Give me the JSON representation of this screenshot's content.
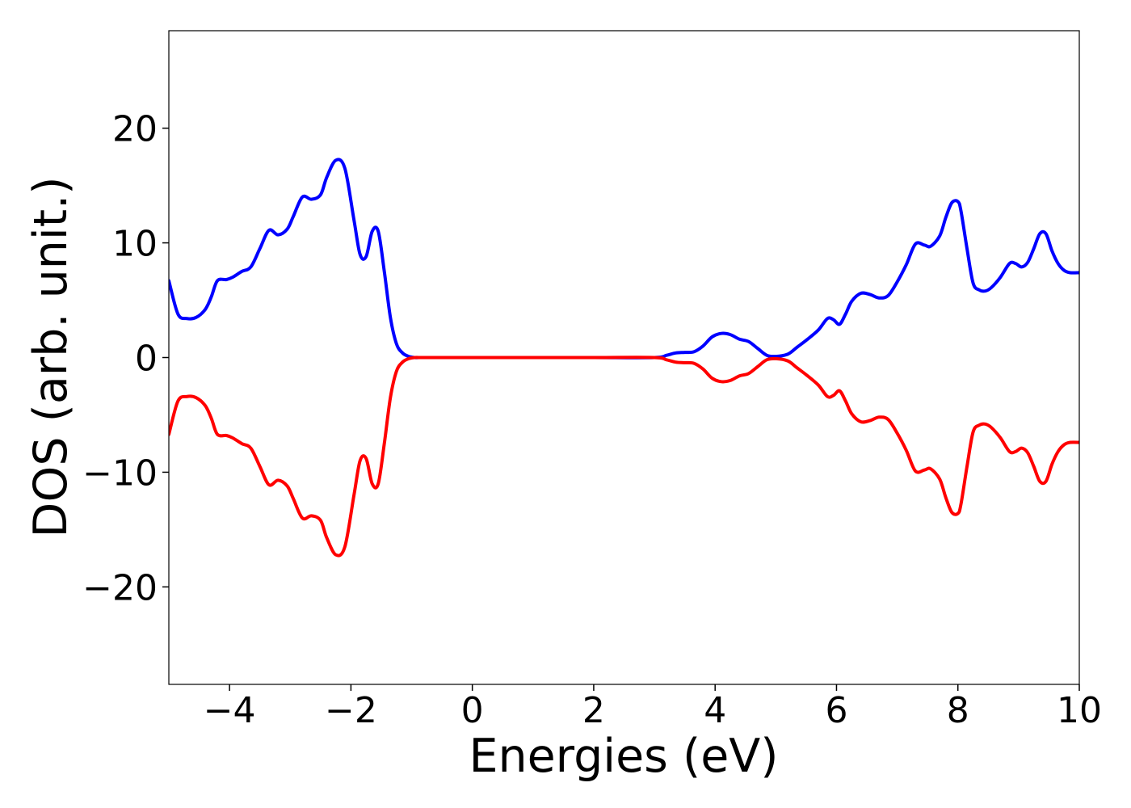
{
  "chart_data": {
    "type": "line",
    "xlabel": "Energies (eV)",
    "ylabel": "DOS (arb. unit.)",
    "xlim": [
      -5,
      10
    ],
    "ylim": [
      -28.5,
      28.5
    ],
    "xticks": [
      -4,
      -2,
      0,
      2,
      4,
      6,
      8,
      10
    ],
    "xtick_labels": [
      "−4",
      "−2",
      "0",
      "2",
      "4",
      "6",
      "8",
      "10"
    ],
    "yticks": [
      20,
      10,
      0,
      -10,
      -20
    ],
    "ytick_labels": [
      "20",
      "10",
      "0",
      "−10",
      "−20"
    ],
    "grid": false,
    "legend": "none",
    "series": [
      {
        "color": "#0000ff",
        "x": [
          -5.0,
          -4.85,
          -4.7,
          -4.55,
          -4.4,
          -4.3,
          -4.2,
          -4.05,
          -3.95,
          -3.8,
          -3.65,
          -3.5,
          -3.35,
          -3.2,
          -3.05,
          -2.95,
          -2.8,
          -2.65,
          -2.5,
          -2.4,
          -2.25,
          -2.1,
          -1.95,
          -1.85,
          -1.75,
          -1.65,
          -1.55,
          -1.45,
          -1.35,
          -1.25,
          -1.15,
          -1.05,
          -0.95,
          -0.85,
          -0.75,
          -0.65,
          -0.55,
          0.0,
          1.0,
          2.0,
          3.0,
          3.2,
          3.35,
          3.5,
          3.65,
          3.8,
          3.95,
          4.1,
          4.25,
          4.4,
          4.55,
          4.7,
          4.85,
          5.0,
          5.2,
          5.35,
          5.5,
          5.7,
          5.85,
          5.95,
          6.05,
          6.15,
          6.25,
          6.4,
          6.55,
          6.7,
          6.85,
          7.0,
          7.15,
          7.3,
          7.45,
          7.55,
          7.7,
          7.8,
          7.9,
          8.0,
          8.05,
          8.15,
          8.25,
          8.35,
          8.45,
          8.55,
          8.7,
          8.85,
          8.95,
          9.05,
          9.15,
          9.25,
          9.35,
          9.45,
          9.55,
          9.65,
          9.75,
          9.85,
          10.0
        ],
        "y": [
          6.7,
          3.8,
          3.4,
          3.5,
          4.2,
          5.3,
          6.7,
          6.8,
          7.0,
          7.5,
          7.9,
          9.5,
          11.1,
          10.7,
          11.2,
          12.3,
          14.0,
          13.8,
          14.2,
          15.7,
          17.2,
          16.5,
          12.0,
          9.0,
          8.8,
          11.0,
          11.0,
          7.5,
          3.5,
          1.2,
          0.4,
          0.1,
          0.0,
          0.0,
          0.0,
          0.0,
          0.0,
          0.0,
          0.0,
          0.0,
          0.0,
          0.2,
          0.4,
          0.45,
          0.5,
          1.0,
          1.8,
          2.1,
          2.0,
          1.6,
          1.4,
          0.8,
          0.2,
          0.1,
          0.3,
          0.9,
          1.5,
          2.4,
          3.4,
          3.3,
          2.9,
          3.8,
          4.9,
          5.6,
          5.5,
          5.2,
          5.4,
          6.6,
          8.1,
          9.9,
          9.8,
          9.7,
          10.6,
          12.2,
          13.5,
          13.6,
          12.8,
          9.5,
          6.5,
          5.9,
          5.8,
          6.1,
          7.0,
          8.2,
          8.2,
          7.9,
          8.3,
          9.5,
          10.8,
          10.8,
          9.3,
          8.2,
          7.6,
          7.4,
          7.4
        ]
      },
      {
        "color": "#ff0000",
        "x": [
          -5.0,
          -4.85,
          -4.7,
          -4.55,
          -4.4,
          -4.3,
          -4.2,
          -4.05,
          -3.95,
          -3.8,
          -3.65,
          -3.5,
          -3.35,
          -3.2,
          -3.05,
          -2.95,
          -2.8,
          -2.65,
          -2.5,
          -2.4,
          -2.25,
          -2.1,
          -1.95,
          -1.85,
          -1.75,
          -1.65,
          -1.55,
          -1.45,
          -1.35,
          -1.25,
          -1.15,
          -1.05,
          -0.95,
          -0.85,
          -0.75,
          -0.65,
          -0.55,
          0.0,
          1.0,
          2.0,
          3.0,
          3.2,
          3.35,
          3.5,
          3.65,
          3.8,
          3.95,
          4.1,
          4.25,
          4.4,
          4.55,
          4.7,
          4.85,
          5.0,
          5.2,
          5.35,
          5.5,
          5.7,
          5.85,
          5.95,
          6.05,
          6.15,
          6.25,
          6.4,
          6.55,
          6.7,
          6.85,
          7.0,
          7.15,
          7.3,
          7.45,
          7.55,
          7.7,
          7.8,
          7.9,
          8.0,
          8.05,
          8.15,
          8.25,
          8.35,
          8.45,
          8.55,
          8.7,
          8.85,
          8.95,
          9.05,
          9.15,
          9.25,
          9.35,
          9.45,
          9.55,
          9.65,
          9.75,
          9.85,
          10.0
        ],
        "y": [
          -6.7,
          -3.8,
          -3.4,
          -3.5,
          -4.2,
          -5.3,
          -6.7,
          -6.8,
          -7.0,
          -7.5,
          -7.9,
          -9.5,
          -11.1,
          -10.7,
          -11.2,
          -12.3,
          -14.0,
          -13.8,
          -14.2,
          -15.7,
          -17.2,
          -16.5,
          -12.0,
          -9.0,
          -8.8,
          -11.0,
          -11.0,
          -7.5,
          -3.5,
          -1.2,
          -0.4,
          -0.1,
          0.0,
          0.0,
          0.0,
          0.0,
          0.0,
          0.0,
          0.0,
          0.0,
          0.0,
          -0.2,
          -0.4,
          -0.45,
          -0.5,
          -1.0,
          -1.8,
          -2.1,
          -2.0,
          -1.6,
          -1.4,
          -0.8,
          -0.2,
          -0.1,
          -0.3,
          -0.9,
          -1.5,
          -2.4,
          -3.4,
          -3.3,
          -2.9,
          -3.8,
          -4.9,
          -5.6,
          -5.5,
          -5.2,
          -5.4,
          -6.6,
          -8.1,
          -9.9,
          -9.8,
          -9.7,
          -10.6,
          -12.2,
          -13.5,
          -13.6,
          -12.8,
          -9.5,
          -6.5,
          -5.9,
          -5.8,
          -6.1,
          -7.0,
          -8.2,
          -8.2,
          -7.9,
          -8.3,
          -9.5,
          -10.8,
          -10.8,
          -9.3,
          -8.2,
          -7.6,
          -7.4,
          -7.4
        ]
      }
    ]
  }
}
